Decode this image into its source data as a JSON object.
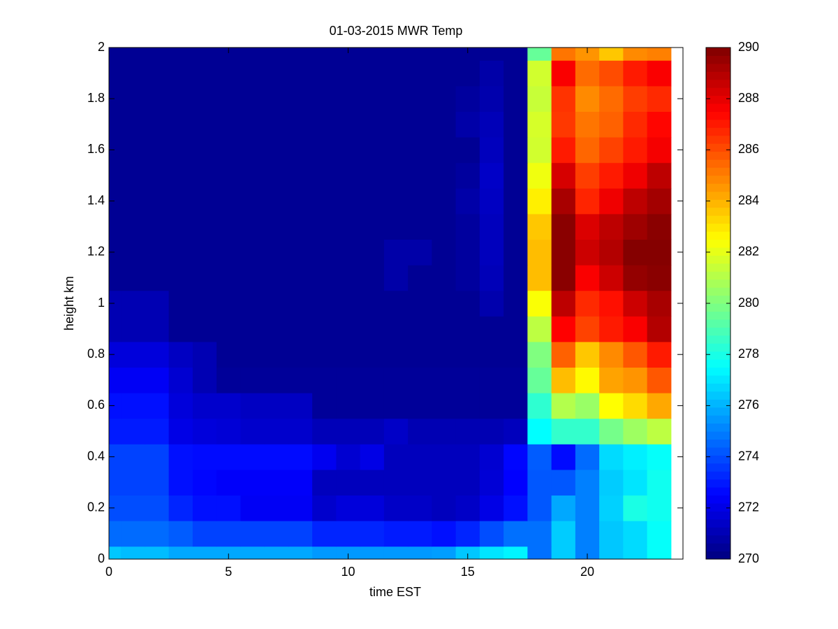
{
  "chart_data": {
    "type": "heatmap",
    "title": "01-03-2015 MWR Temp",
    "xlabel": "time EST",
    "ylabel": "height km",
    "x": [
      0,
      1,
      2,
      3,
      4,
      5,
      6,
      7,
      8,
      9,
      10,
      11,
      12,
      13,
      14,
      15,
      16,
      17,
      18,
      19,
      20,
      21,
      22,
      23
    ],
    "y": [
      0,
      0.1,
      0.2,
      0.3,
      0.4,
      0.5,
      0.6,
      0.7,
      0.8,
      0.9,
      1,
      1.1,
      1.2,
      1.3,
      1.4,
      1.5,
      1.6,
      1.7,
      1.8,
      1.9,
      2
    ],
    "z": [
      [
        276.4,
        276.2,
        276.2,
        275.8,
        275.8,
        275.8,
        275.8,
        275.8,
        275.8,
        275.5,
        275.5,
        275.5,
        275.5,
        275.5,
        275.6,
        276.4,
        277,
        277.3,
        274.7,
        276.5,
        275,
        276.4,
        276.8,
        277.6
      ],
      [
        274.6,
        274.6,
        274.6,
        274.3,
        273.8,
        273.8,
        273.8,
        273.8,
        273.8,
        273.2,
        273.2,
        273.2,
        273,
        273,
        272.8,
        273.2,
        274,
        274.7,
        274.7,
        276.5,
        275,
        276.4,
        276.8,
        277.6
      ],
      [
        274,
        274,
        274,
        273.2,
        272.8,
        272.8,
        272.3,
        272.3,
        272.3,
        271.5,
        271.8,
        271.8,
        271.4,
        271.4,
        271.2,
        271.4,
        272,
        272.8,
        274.2,
        275.8,
        275,
        276.6,
        278,
        277.8
      ],
      [
        273.8,
        273.8,
        273.8,
        272.8,
        272.6,
        272.4,
        272.4,
        272.4,
        272.4,
        271.2,
        271.2,
        271.2,
        271.2,
        271.2,
        271.2,
        271.2,
        271.7,
        272.5,
        274.2,
        274.2,
        275,
        276.5,
        277,
        277.8
      ],
      [
        273.8,
        273.8,
        273.8,
        272.8,
        272.7,
        272.7,
        272.7,
        272.7,
        272.7,
        272.2,
        271.6,
        272,
        271.2,
        271.2,
        271.2,
        271.2,
        271.6,
        272.6,
        274.3,
        272.7,
        274.6,
        276.8,
        277.2,
        277.6
      ],
      [
        273,
        273,
        273,
        272,
        271.8,
        271.7,
        271.5,
        271.5,
        271.5,
        271.1,
        271.1,
        271.1,
        271.4,
        271,
        271,
        271,
        271,
        271.2,
        277.5,
        278.5,
        278.5,
        279.8,
        280.6,
        281.2
      ],
      [
        272.8,
        272.8,
        272.8,
        271.8,
        271.5,
        271.5,
        271.3,
        271.3,
        271.3,
        270.5,
        270.5,
        270.5,
        270.5,
        270.5,
        270.5,
        270.5,
        270.5,
        270.5,
        278.4,
        281,
        280.5,
        282.5,
        283.2,
        284.2
      ],
      [
        272.3,
        272.3,
        272.3,
        271.6,
        271,
        270.5,
        270.5,
        270.5,
        270.5,
        270.5,
        270.5,
        270.5,
        270.5,
        270.5,
        270.5,
        270.5,
        270.5,
        270.5,
        279.5,
        283.8,
        282.6,
        284.3,
        284.6,
        285.8
      ],
      [
        271.8,
        271.8,
        271.8,
        271.3,
        271,
        270.4,
        270.4,
        270.4,
        270.4,
        270.4,
        270.4,
        270.4,
        270.4,
        270.4,
        270.4,
        270.4,
        270.4,
        270.4,
        280,
        285.6,
        283.6,
        284.8,
        285.8,
        287
      ],
      [
        271,
        271,
        271,
        270.4,
        270.4,
        270.4,
        270.4,
        270.4,
        270.4,
        270.4,
        270.4,
        270.4,
        270.4,
        270.4,
        270.4,
        270.4,
        270.4,
        270.4,
        281.2,
        287.5,
        286.2,
        287,
        287.6,
        289
      ],
      [
        271,
        271,
        271,
        270.4,
        270.4,
        270.4,
        270.4,
        270.4,
        270.4,
        270.4,
        270.4,
        270.4,
        270.4,
        270.4,
        270.4,
        270.4,
        270.9,
        270.4,
        282.4,
        288.8,
        286.7,
        287.2,
        288.5,
        289.2
      ],
      [
        270.4,
        270.4,
        270.4,
        270.4,
        270.4,
        270.4,
        270.4,
        270.4,
        270.4,
        270.4,
        270.4,
        270.4,
        270.8,
        270.4,
        270.4,
        270.6,
        271.1,
        270.4,
        283.8,
        289.8,
        287.6,
        288.5,
        289.6,
        289.8
      ],
      [
        270.4,
        270.4,
        270.4,
        270.4,
        270.4,
        270.4,
        270.4,
        270.4,
        270.4,
        270.4,
        270.4,
        270.4,
        270.8,
        270.8,
        270.4,
        270.6,
        271.2,
        270.4,
        283.8,
        289.8,
        288.5,
        289,
        289.9,
        289.9
      ],
      [
        270.4,
        270.4,
        270.4,
        270.4,
        270.4,
        270.4,
        270.4,
        270.4,
        270.4,
        270.4,
        270.4,
        270.4,
        270.4,
        270.4,
        270.4,
        270.6,
        271.2,
        270.4,
        283.6,
        289.8,
        288.2,
        288.8,
        289.4,
        289.8
      ],
      [
        270.4,
        270.4,
        270.4,
        270.4,
        270.4,
        270.4,
        270.4,
        270.4,
        270.4,
        270.4,
        270.4,
        270.4,
        270.4,
        270.4,
        270.4,
        270.8,
        271.3,
        270.4,
        282.8,
        289.2,
        286.8,
        287.8,
        288.8,
        289.3
      ],
      [
        270.4,
        270.4,
        270.4,
        270.4,
        270.4,
        270.4,
        270.4,
        270.4,
        270.4,
        270.4,
        270.4,
        270.4,
        270.4,
        270.4,
        270.4,
        270.6,
        271.4,
        270.4,
        282.2,
        288.3,
        286.3,
        287,
        287.8,
        288.8
      ],
      [
        270.4,
        270.4,
        270.4,
        270.4,
        270.4,
        270.4,
        270.4,
        270.4,
        270.4,
        270.4,
        270.4,
        270.4,
        270.4,
        270.4,
        270.4,
        270.4,
        271.2,
        270.4,
        281.6,
        287,
        285.5,
        286.2,
        287,
        287.7
      ],
      [
        270.4,
        270.4,
        270.4,
        270.4,
        270.4,
        270.4,
        270.4,
        270.4,
        270.4,
        270.4,
        270.4,
        270.4,
        270.4,
        270.4,
        270.4,
        270.8,
        271.1,
        270.4,
        281.7,
        286.4,
        285.2,
        285.6,
        286.7,
        287.4
      ],
      [
        270.4,
        270.4,
        270.4,
        270.4,
        270.4,
        270.4,
        270.4,
        270.4,
        270.4,
        270.4,
        270.4,
        270.4,
        270.4,
        270.4,
        270.4,
        270.6,
        270.9,
        270.4,
        281.4,
        286.5,
        284.8,
        285.4,
        286.3,
        286.7
      ],
      [
        270.4,
        270.4,
        270.4,
        270.4,
        270.4,
        270.4,
        270.4,
        270.4,
        270.4,
        270.4,
        270.4,
        270.4,
        270.4,
        270.4,
        270.4,
        270.4,
        270.8,
        270.4,
        281.6,
        287.6,
        285.4,
        286,
        287,
        287.6
      ],
      [
        270.4,
        270.4,
        270.4,
        270.4,
        270.4,
        270.4,
        270.4,
        270.4,
        270.4,
        270.4,
        270.4,
        270.4,
        270.4,
        270.4,
        270.4,
        270.4,
        270.4,
        270.4,
        279.5,
        285.2,
        284.6,
        283.6,
        284.8,
        285
      ]
    ],
    "xlim": [
      0,
      24
    ],
    "xticks": [
      0,
      5,
      10,
      15,
      20
    ],
    "ylim": [
      0,
      2
    ],
    "yticks": [
      0,
      0.2,
      0.4,
      0.6,
      0.8,
      1,
      1.2,
      1.4,
      1.6,
      1.8,
      2
    ],
    "colormap": "jet",
    "clim": [
      270,
      290
    ],
    "cticks": [
      270,
      272,
      274,
      276,
      278,
      280,
      282,
      284,
      286,
      288,
      290
    ]
  }
}
